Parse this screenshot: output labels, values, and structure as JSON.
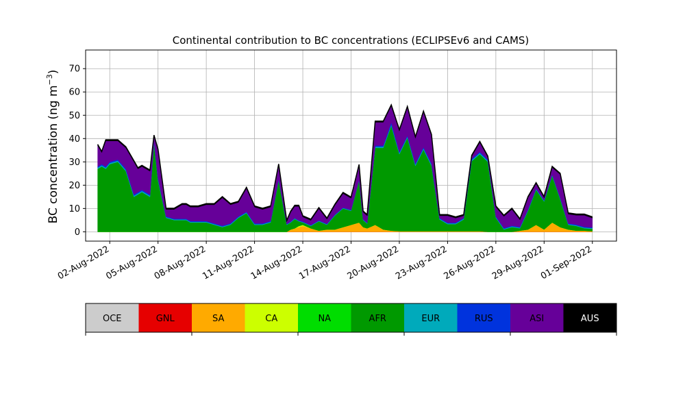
{
  "chart_data": {
    "type": "area",
    "stacked": true,
    "title": "Continental contribution to BC concentrations (ECLIPSEv6 and CAMS)",
    "ylabel_main": "BC concentration (ng m",
    "ylabel_sup": "−3",
    "ylabel_close": ")",
    "xlabel": "",
    "grid": true,
    "x_range": [
      "2022-07-31T12:00",
      "2022-09-02T12:00"
    ],
    "ylim": [
      -4,
      78
    ],
    "y_ticks": [
      0,
      10,
      20,
      30,
      40,
      50,
      60,
      70
    ],
    "x_ticks": [
      {
        "date": "2022-08-02",
        "label": "02-Aug-2022"
      },
      {
        "date": "2022-08-05",
        "label": "05-Aug-2022"
      },
      {
        "date": "2022-08-08",
        "label": "08-Aug-2022"
      },
      {
        "date": "2022-08-11",
        "label": "11-Aug-2022"
      },
      {
        "date": "2022-08-14",
        "label": "14-Aug-2022"
      },
      {
        "date": "2022-08-17",
        "label": "17-Aug-2022"
      },
      {
        "date": "2022-08-20",
        "label": "20-Aug-2022"
      },
      {
        "date": "2022-08-23",
        "label": "23-Aug-2022"
      },
      {
        "date": "2022-08-26",
        "label": "26-Aug-2022"
      },
      {
        "date": "2022-08-29",
        "label": "29-Aug-2022"
      },
      {
        "date": "2022-09-01",
        "label": "01-Sep-2022"
      }
    ],
    "x": [
      "2022-08-01T06:00",
      "2022-08-01T12:00",
      "2022-08-01T18:00",
      "2022-08-02T00:00",
      "2022-08-02T12:00",
      "2022-08-03T00:00",
      "2022-08-03T12:00",
      "2022-08-03T18:00",
      "2022-08-04T00:00",
      "2022-08-04T12:00",
      "2022-08-04T18:00",
      "2022-08-05T00:00",
      "2022-08-05T12:00",
      "2022-08-06T00:00",
      "2022-08-06T12:00",
      "2022-08-06T18:00",
      "2022-08-07T00:00",
      "2022-08-07T12:00",
      "2022-08-08T00:00",
      "2022-08-08T12:00",
      "2022-08-09T00:00",
      "2022-08-09T12:00",
      "2022-08-10T00:00",
      "2022-08-10T12:00",
      "2022-08-11T00:00",
      "2022-08-11T12:00",
      "2022-08-12T00:00",
      "2022-08-12T12:00",
      "2022-08-13T00:00",
      "2022-08-13T06:00",
      "2022-08-13T12:00",
      "2022-08-13T18:00",
      "2022-08-14T00:00",
      "2022-08-14T12:00",
      "2022-08-15T00:00",
      "2022-08-15T12:00",
      "2022-08-16T00:00",
      "2022-08-16T12:00",
      "2022-08-17T00:00",
      "2022-08-17T12:00",
      "2022-08-17T18:00",
      "2022-08-18T00:00",
      "2022-08-18T12:00",
      "2022-08-19T00:00",
      "2022-08-19T12:00",
      "2022-08-20T00:00",
      "2022-08-20T12:00",
      "2022-08-21T00:00",
      "2022-08-21T12:00",
      "2022-08-22T00:00",
      "2022-08-22T12:00",
      "2022-08-23T00:00",
      "2022-08-23T12:00",
      "2022-08-24T00:00",
      "2022-08-24T12:00",
      "2022-08-25T00:00",
      "2022-08-25T12:00",
      "2022-08-26T00:00",
      "2022-08-26T12:00",
      "2022-08-27T00:00",
      "2022-08-27T12:00",
      "2022-08-28T00:00",
      "2022-08-28T12:00",
      "2022-08-29T00:00",
      "2022-08-29T12:00",
      "2022-08-30T00:00",
      "2022-08-30T12:00",
      "2022-08-31T00:00",
      "2022-08-31T12:00",
      "2022-09-01T00:00"
    ],
    "series": [
      {
        "name": "OCE",
        "color": "#cccccc",
        "values": [
          0,
          0,
          0,
          0,
          0,
          0,
          0,
          0,
          0,
          0,
          0,
          0,
          0,
          0,
          0,
          0,
          0,
          0,
          0,
          0,
          0,
          0,
          0,
          0,
          0,
          0,
          0,
          0,
          0,
          0,
          0,
          0,
          0,
          0,
          0,
          0,
          0,
          0,
          0,
          0,
          0,
          0,
          0,
          0,
          0,
          0,
          0,
          0,
          0,
          0,
          0,
          0,
          0,
          0,
          0,
          0,
          0,
          0,
          0,
          0,
          0,
          0,
          0,
          0,
          0,
          0,
          0,
          0,
          0,
          0
        ]
      },
      {
        "name": "GNL",
        "color": "#e60000",
        "values": [
          0,
          0,
          0,
          0,
          0,
          0,
          0,
          0,
          0,
          0,
          0,
          0,
          0,
          0,
          0,
          0,
          0,
          0,
          0,
          0,
          0,
          0,
          0,
          0,
          0,
          0,
          0,
          0,
          0,
          0,
          0,
          0,
          0,
          0,
          0,
          0,
          0,
          0,
          0,
          0,
          0,
          0,
          0,
          0,
          0,
          0,
          0,
          0,
          0,
          0,
          0,
          0,
          0,
          0,
          0,
          0,
          0,
          0,
          0,
          0,
          0,
          0,
          0,
          0,
          0,
          0,
          0,
          0,
          0,
          0
        ]
      },
      {
        "name": "SA",
        "color": "#ffaa00",
        "values": [
          0,
          0,
          0,
          0,
          0,
          0,
          0,
          0,
          0,
          0,
          0,
          0,
          0,
          0,
          0,
          0,
          0,
          0,
          0,
          0,
          0,
          0,
          0,
          0,
          0,
          0,
          0,
          0,
          0,
          1,
          1.5,
          2,
          2.5,
          1.5,
          0.5,
          1,
          1,
          2,
          3,
          4,
          2,
          1.5,
          3,
          1,
          0.5,
          0.3,
          0.3,
          0.3,
          0.3,
          0.3,
          0.3,
          0.3,
          0.3,
          0.3,
          0.3,
          0.3,
          0,
          0,
          0,
          0,
          0.5,
          1,
          3,
          1,
          4,
          2,
          1,
          0.5,
          0.5,
          0.3
        ]
      },
      {
        "name": "CA",
        "color": "#ccff00",
        "values": [
          0,
          0,
          0,
          0,
          0,
          0,
          0,
          0,
          0,
          0,
          0,
          0,
          0,
          0,
          0,
          0,
          0,
          0,
          0,
          0,
          0,
          0,
          0,
          0,
          0,
          0,
          0,
          0,
          0,
          0,
          0,
          0.5,
          0.5,
          0,
          0,
          0,
          0,
          0,
          0,
          0,
          0,
          0,
          0,
          0,
          0,
          0,
          0,
          0,
          0,
          0,
          0,
          0,
          0,
          0,
          0,
          0,
          0,
          0,
          0,
          0,
          0,
          0,
          0,
          0,
          0,
          0,
          0,
          0,
          0,
          0
        ]
      },
      {
        "name": "NA",
        "color": "#00dd00",
        "values": [
          0,
          0,
          0,
          0,
          0,
          0,
          0,
          0,
          0,
          0,
          0,
          0,
          0,
          0,
          0,
          0,
          0,
          0,
          0,
          0,
          0,
          0,
          0,
          0,
          0,
          0,
          0,
          0,
          0,
          0,
          0,
          0,
          0,
          0,
          0,
          0,
          0,
          0,
          0,
          0,
          0,
          0,
          0,
          0,
          0,
          0,
          0,
          0,
          0,
          0,
          0,
          0,
          0,
          0,
          0,
          0,
          0,
          0,
          0,
          0,
          0,
          0,
          0,
          0,
          0,
          0,
          0,
          0,
          0,
          0
        ]
      },
      {
        "name": "AFR",
        "color": "#009900",
        "values": [
          27,
          28,
          27,
          29,
          30,
          26,
          15,
          16,
          17,
          15,
          38,
          22,
          6,
          5,
          5,
          5,
          4,
          4,
          4,
          3,
          2,
          3,
          6,
          8,
          3,
          3,
          4,
          22,
          3,
          3,
          4,
          2,
          1,
          1,
          4,
          2,
          6,
          8,
          6,
          18,
          3,
          2,
          33,
          35,
          45,
          33,
          40,
          28,
          35,
          28,
          5,
          3,
          3,
          5,
          30,
          33,
          30,
          6,
          1,
          2,
          1,
          8,
          15,
          12,
          20,
          12,
          2,
          2,
          1,
          1
        ]
      },
      {
        "name": "EUR",
        "color": "#00aabb",
        "values": [
          0.5,
          0.5,
          0.5,
          0.5,
          0.5,
          0.5,
          0.5,
          0.5,
          0.5,
          0.5,
          0.5,
          0.5,
          0.3,
          0.3,
          0.3,
          0.3,
          0.3,
          0.3,
          0.3,
          0.3,
          0.3,
          0.3,
          0.3,
          0.3,
          0.3,
          0.3,
          0.3,
          0.3,
          0.2,
          0.2,
          0.2,
          0.2,
          0.2,
          0.2,
          0.2,
          0.2,
          0.2,
          0.2,
          0.2,
          0.2,
          0.2,
          0.2,
          0.5,
          0.5,
          0.5,
          0.5,
          0.5,
          0.5,
          0.5,
          0.5,
          0.3,
          0.3,
          0.3,
          0.3,
          0.5,
          0.5,
          0.5,
          0.3,
          0.3,
          0.3,
          0.3,
          0.3,
          0.3,
          0.3,
          0.3,
          0.3,
          0.3,
          0.3,
          0.3,
          0.3
        ]
      },
      {
        "name": "RUS",
        "color": "#0033dd",
        "values": [
          0.5,
          0.5,
          0.5,
          0.5,
          0.5,
          0.5,
          0.5,
          0.5,
          0.5,
          0.5,
          0.5,
          0.5,
          0.3,
          0.3,
          0.3,
          0.3,
          0.3,
          0.3,
          0.3,
          0.3,
          0.3,
          0.3,
          0.3,
          0.3,
          0.3,
          0.3,
          0.3,
          0.3,
          0.2,
          0.2,
          0.2,
          0.2,
          0.2,
          0.2,
          0.2,
          0.2,
          0.2,
          0.2,
          0.2,
          0.2,
          0.2,
          0.2,
          0.5,
          0.5,
          1,
          0.5,
          0.5,
          0.5,
          0.5,
          0.5,
          0.3,
          0.3,
          0.3,
          0.3,
          0.5,
          0.5,
          0.5,
          0.3,
          0.3,
          0.3,
          0.3,
          0.3,
          0.3,
          0.3,
          0.3,
          0.3,
          0.3,
          0.3,
          0.3,
          0.3
        ]
      },
      {
        "name": "ASI",
        "color": "#660099",
        "values": [
          9,
          5,
          11,
          9,
          8,
          9,
          14,
          10,
          10,
          10,
          2,
          12,
          3,
          4,
          6,
          6,
          6,
          6,
          7,
          8,
          12,
          8,
          6,
          10,
          7,
          6,
          6,
          6,
          1,
          4,
          5,
          6,
          2,
          2,
          5,
          2,
          4,
          6,
          5,
          6,
          3,
          3,
          10,
          10,
          7,
          9,
          12,
          11,
          15,
          12,
          1,
          3,
          2,
          1,
          1,
          4,
          1,
          4,
          5,
          7,
          3,
          5,
          2,
          1,
          3,
          10,
          4,
          4,
          5,
          4
        ]
      },
      {
        "name": "AUS",
        "color": "#000000",
        "values": [
          0.5,
          0.5,
          0.5,
          0.5,
          0.5,
          0.5,
          0.5,
          0.5,
          0.5,
          0.5,
          0.5,
          0.5,
          0.5,
          0.5,
          0.5,
          0.5,
          0.5,
          0.5,
          0.5,
          0.5,
          0.5,
          0.5,
          0.5,
          0.5,
          0.5,
          0.5,
          0.5,
          0.5,
          0.5,
          0.5,
          0.5,
          0.5,
          0.5,
          0.5,
          0.5,
          0.5,
          0.5,
          0.5,
          0.5,
          0.5,
          0.5,
          0.5,
          0.5,
          0.5,
          0.5,
          0.5,
          0.5,
          0.5,
          0.5,
          0.5,
          0.5,
          0.5,
          0.5,
          0.5,
          0.5,
          0.5,
          0.5,
          0.5,
          0.5,
          0.5,
          0.5,
          0.5,
          0.5,
          0.5,
          0.5,
          0.5,
          0.5,
          0.5,
          0.5,
          0.5
        ]
      }
    ],
    "legend": [
      "OCE",
      "GNL",
      "SA",
      "CA",
      "NA",
      "AFR",
      "EUR",
      "RUS",
      "ASI",
      "AUS"
    ],
    "legend_colors": [
      "#cccccc",
      "#e60000",
      "#ffaa00",
      "#ccff00",
      "#00dd00",
      "#009900",
      "#00aabb",
      "#0033dd",
      "#660099",
      "#000000"
    ],
    "legend_text_colors": [
      "#000000",
      "#000000",
      "#000000",
      "#000000",
      "#000000",
      "#000000",
      "#000000",
      "#000000",
      "#000000",
      "#ffffff"
    ],
    "legend_placement": "bottom"
  }
}
